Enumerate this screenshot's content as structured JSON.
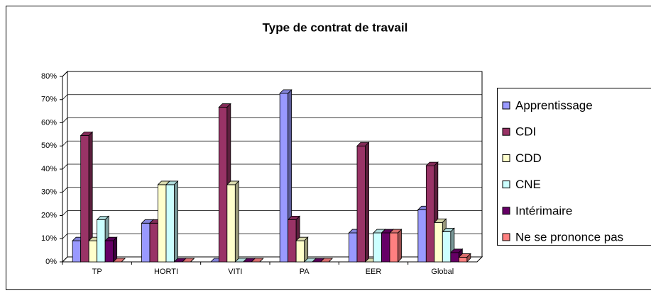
{
  "chart_data": {
    "type": "bar3d",
    "title": "Type de contrat de travail",
    "categories": [
      "TP",
      "HORTI",
      "VITI",
      "PA",
      "EER",
      "Global"
    ],
    "series": [
      {
        "name": "Apprentissage",
        "color": "#9999ff",
        "values": [
          9.1,
          16.7,
          0,
          72.7,
          12.5,
          22.5
        ]
      },
      {
        "name": "CDI",
        "color": "#993366",
        "values": [
          54.5,
          16.7,
          66.7,
          18.2,
          50,
          41.5
        ]
      },
      {
        "name": "CDD",
        "color": "#ffffcc",
        "values": [
          9.1,
          33.3,
          33.3,
          9.1,
          0,
          17
        ]
      },
      {
        "name": "CNE",
        "color": "#ccffff",
        "values": [
          18.2,
          33.3,
          0,
          0,
          12.5,
          13
        ]
      },
      {
        "name": "Intérimaire",
        "color": "#660066",
        "values": [
          9.1,
          0,
          0,
          0,
          12.5,
          4
        ]
      },
      {
        "name": "Ne se prononce pas",
        "color": "#ff8080",
        "values": [
          0,
          0,
          0,
          0,
          12.5,
          2
        ]
      }
    ],
    "ylim": [
      0,
      80
    ],
    "yticks": [
      {
        "value": 0,
        "label": "0%"
      },
      {
        "value": 10,
        "label": "10%"
      },
      {
        "value": 20,
        "label": "20%"
      },
      {
        "value": 30,
        "label": "30%"
      },
      {
        "value": 40,
        "label": "40%"
      },
      {
        "value": 50,
        "label": "50%"
      },
      {
        "value": 60,
        "label": "60%"
      },
      {
        "value": 70,
        "label": "70%"
      },
      {
        "value": 80,
        "label": "80%"
      }
    ],
    "grid": true,
    "legend": "right"
  }
}
